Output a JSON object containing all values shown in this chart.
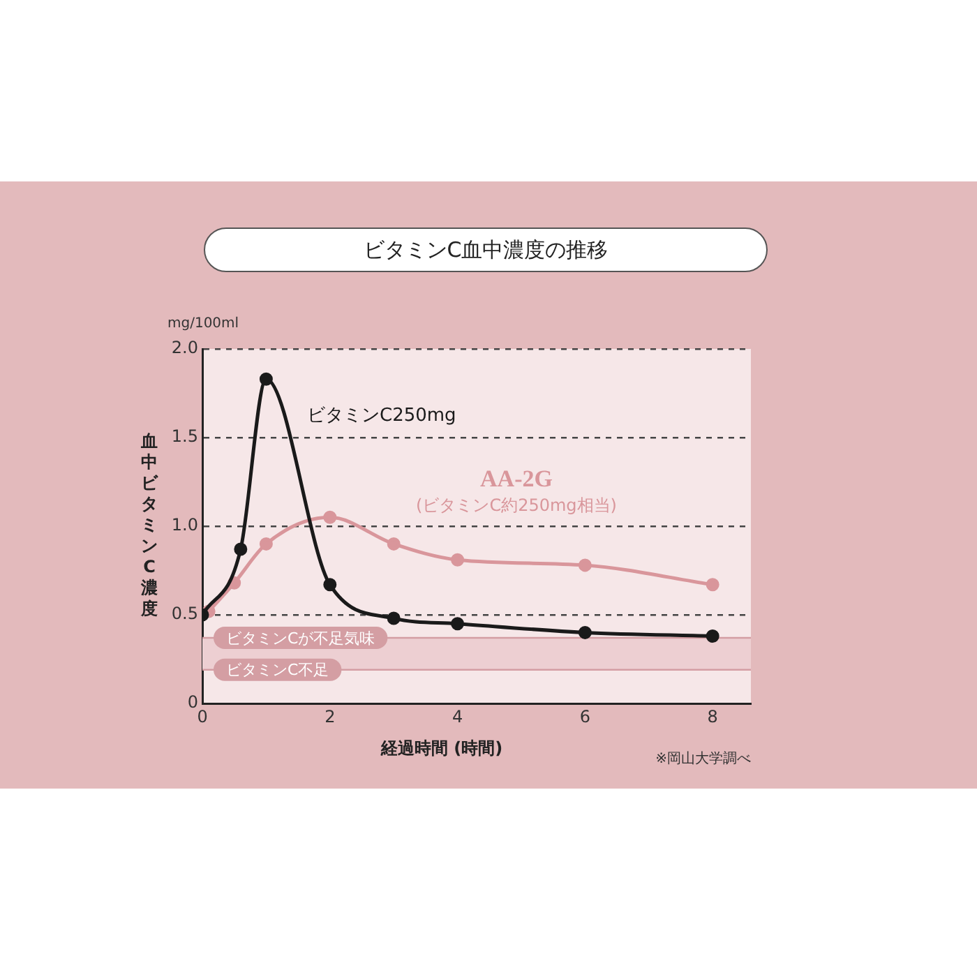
{
  "chart_data": {
    "type": "line",
    "title": "ビタミンC血中濃度の推移",
    "xlabel": "経過時間 (時間)",
    "ylabel": "血中ビタミンC濃度",
    "series": [
      {
        "name": "ビタミンC250mg",
        "color": "#1a1a1a",
        "x": [
          0,
          0.6,
          1,
          2,
          3,
          4,
          6,
          8
        ],
        "values": [
          0.5,
          0.87,
          1.83,
          0.67,
          0.48,
          0.45,
          0.4,
          0.38
        ]
      },
      {
        "name": "AA-2G",
        "color": "#d9969b",
        "x": [
          0.1,
          0.5,
          1,
          2,
          3,
          4,
          6,
          8
        ],
        "values": [
          0.52,
          0.68,
          0.9,
          1.05,
          0.9,
          0.81,
          0.78,
          0.67
        ]
      }
    ],
    "xlim": [
      0,
      8.6
    ],
    "xticks": [
      0,
      2,
      4,
      6,
      8
    ],
    "ylim": [
      0,
      2
    ],
    "yticks": [
      0,
      {
        "value": 0.5,
        "label": "0.5"
      },
      {
        "value": 1,
        "label": "1.0"
      },
      {
        "value": 1.5,
        "label": "1.5"
      },
      {
        "value": 2,
        "label": "2.0"
      }
    ],
    "grid": "y",
    "legend": false,
    "marker": "circle",
    "line_style": "solid",
    "ref_lines": [
      {
        "axis": "y",
        "value": 0.37,
        "label": "ビタミンCが不足気味",
        "color": "#d49ea3"
      },
      {
        "axis": "y",
        "value": 0.19,
        "label": "ビタミンC不足",
        "color": "#d49ea3"
      }
    ],
    "bands": [
      {
        "axis": "y",
        "from": 0.19,
        "to": 0.37,
        "color": "#edcfd2"
      }
    ],
    "annotations": [
      "mg/100ml",
      "(ビタミンC約250mg相当)",
      "※岡山大学調べ"
    ]
  }
}
